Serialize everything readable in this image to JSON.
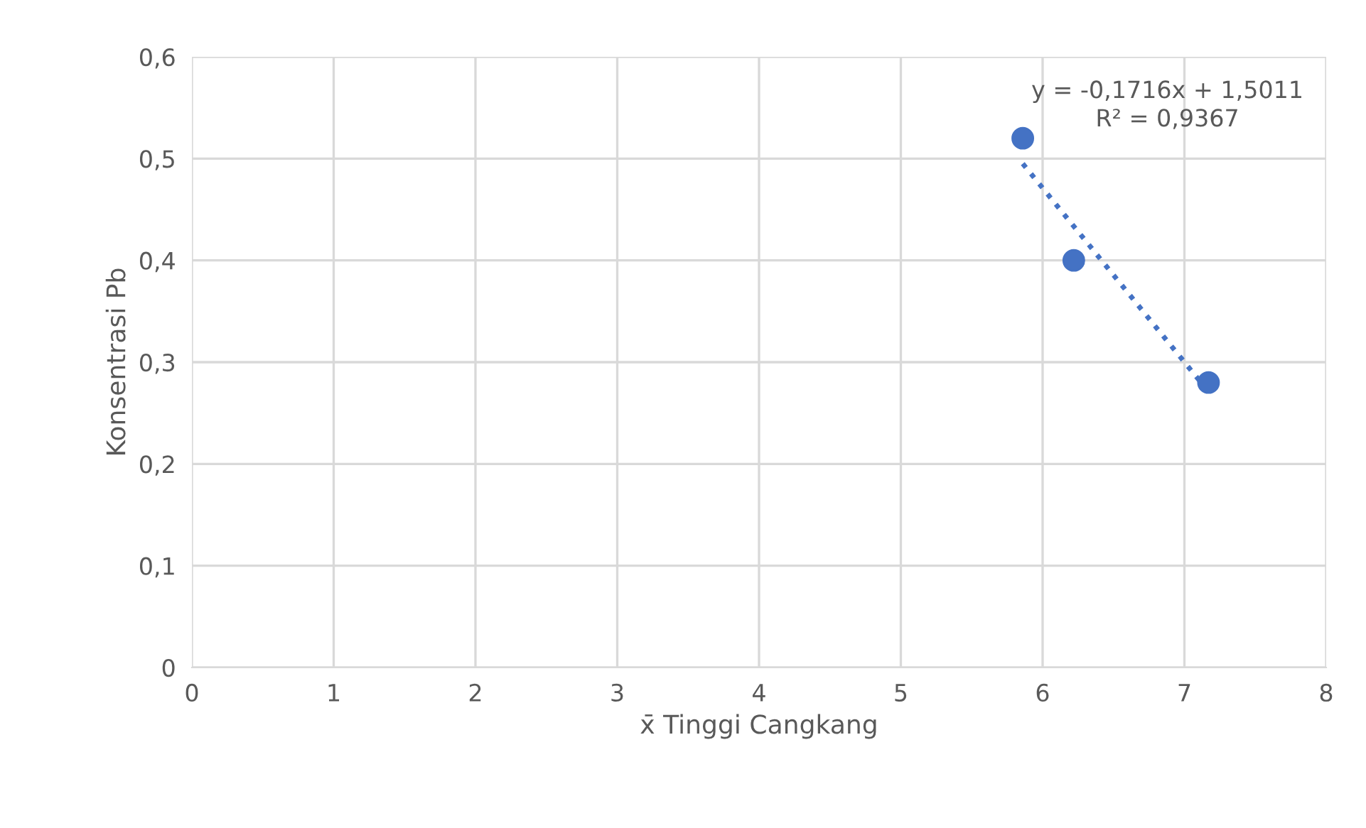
{
  "chart_data": {
    "type": "scatter",
    "xlabel": "x̄ Tinggi Cangkang",
    "ylabel": "Konsentrasi Pb",
    "xlim": [
      0,
      8
    ],
    "xticks": [
      0,
      1,
      2,
      3,
      4,
      5,
      6,
      7,
      8
    ],
    "ylim": [
      0,
      0.6
    ],
    "yticks": [
      {
        "value": 0,
        "label": "0"
      },
      {
        "value": 0.1,
        "label": "0,1"
      },
      {
        "value": 0.2,
        "label": "0,2"
      },
      {
        "value": 0.3,
        "label": "0,3"
      },
      {
        "value": 0.4,
        "label": "0,4"
      },
      {
        "value": 0.5,
        "label": "0,5"
      },
      {
        "value": 0.6,
        "label": "0,6"
      }
    ],
    "grid": true,
    "legend": false,
    "marker": "circle",
    "series": [
      {
        "color": "#4472c4",
        "x": [
          5.86,
          6.22,
          7.17
        ],
        "values": [
          0.52,
          0.4,
          0.28
        ]
      },
      {
        "type": "line",
        "color": "#4472c4",
        "line_style": "dotted",
        "marker": "none",
        "x": [
          5.86,
          7.17
        ],
        "values": [
          0.495,
          0.271
        ]
      }
    ],
    "annotations": [
      "y = -0,1716x + 1,5011\nR² = 0,9367"
    ]
  }
}
